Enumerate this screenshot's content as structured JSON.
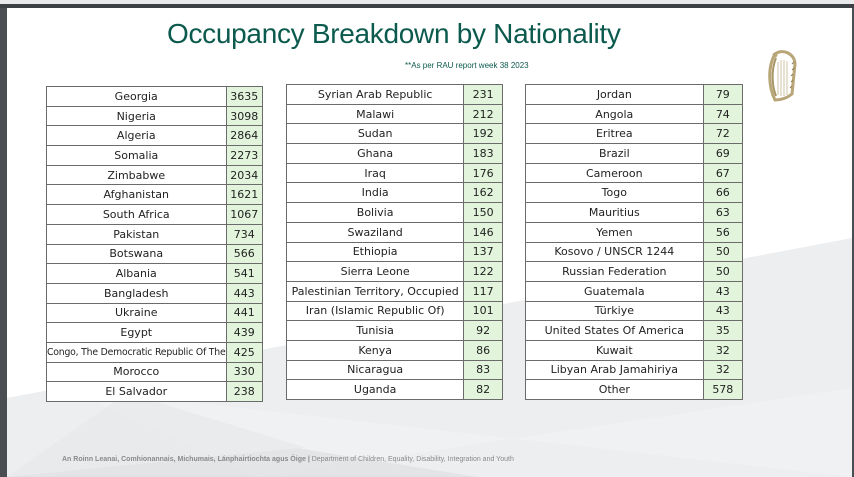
{
  "title": "Occupancy Breakdown by Nationality",
  "subtitle": "**As per RAU report week 38 2023",
  "logo": {
    "icon": "harp-icon"
  },
  "colors": {
    "title": "#0b5a4d",
    "value_cell": "#e2f5dc",
    "border": "#6b6b6b"
  },
  "tables": [
    {
      "rows": [
        {
          "name": "Georgia",
          "value": "3635"
        },
        {
          "name": "Nigeria",
          "value": "3098"
        },
        {
          "name": "Algeria",
          "value": "2864"
        },
        {
          "name": "Somalia",
          "value": "2273"
        },
        {
          "name": "Zimbabwe",
          "value": "2034"
        },
        {
          "name": "Afghanistan",
          "value": "1621"
        },
        {
          "name": "South Africa",
          "value": "1067"
        },
        {
          "name": "Pakistan",
          "value": "734"
        },
        {
          "name": "Botswana",
          "value": "566"
        },
        {
          "name": "Albania",
          "value": "541"
        },
        {
          "name": "Bangladesh",
          "value": "443"
        },
        {
          "name": "Ukraine",
          "value": "441"
        },
        {
          "name": "Egypt",
          "value": "439"
        },
        {
          "name": "Congo, The Democratic Republic Of The",
          "value": "425"
        },
        {
          "name": "Morocco",
          "value": "330"
        },
        {
          "name": "El Salvador",
          "value": "238"
        }
      ]
    },
    {
      "rows": [
        {
          "name": "Syrian Arab Republic",
          "value": "231"
        },
        {
          "name": "Malawi",
          "value": "212"
        },
        {
          "name": "Sudan",
          "value": "192"
        },
        {
          "name": "Ghana",
          "value": "183"
        },
        {
          "name": "Iraq",
          "value": "176"
        },
        {
          "name": "India",
          "value": "162"
        },
        {
          "name": "Bolivia",
          "value": "150"
        },
        {
          "name": "Swaziland",
          "value": "146"
        },
        {
          "name": "Ethiopia",
          "value": "137"
        },
        {
          "name": "Sierra Leone",
          "value": "122"
        },
        {
          "name": "Palestinian Territory, Occupied",
          "value": "117"
        },
        {
          "name": "Iran (Islamic Republic Of)",
          "value": "101"
        },
        {
          "name": "Tunisia",
          "value": "92"
        },
        {
          "name": "Kenya",
          "value": "86"
        },
        {
          "name": "Nicaragua",
          "value": "83"
        },
        {
          "name": "Uganda",
          "value": "82"
        }
      ]
    },
    {
      "rows": [
        {
          "name": "Jordan",
          "value": "79"
        },
        {
          "name": "Angola",
          "value": "74"
        },
        {
          "name": "Eritrea",
          "value": "72"
        },
        {
          "name": "Brazil",
          "value": "69"
        },
        {
          "name": "Cameroon",
          "value": "67"
        },
        {
          "name": "Togo",
          "value": "66"
        },
        {
          "name": "Mauritius",
          "value": "63"
        },
        {
          "name": "Yemen",
          "value": "56"
        },
        {
          "name": "Kosovo / UNSCR 1244",
          "value": "50"
        },
        {
          "name": "Russian Federation",
          "value": "50"
        },
        {
          "name": "Guatemala",
          "value": "43"
        },
        {
          "name": "Türkiye",
          "value": "43"
        },
        {
          "name": "United States Of America",
          "value": "35"
        },
        {
          "name": "Kuwait",
          "value": "32"
        },
        {
          "name": "Libyan Arab Jamahiriya",
          "value": "32"
        },
        {
          "name": "Other",
          "value": "578"
        }
      ]
    }
  ],
  "footer": {
    "irish": "An Roinn Leanai, Comhionannais, Michumais, Lánphairtiochta agus Óige",
    "separator": "|",
    "english": "Department of Children, Equality, Disability, Integration and Youth"
  }
}
